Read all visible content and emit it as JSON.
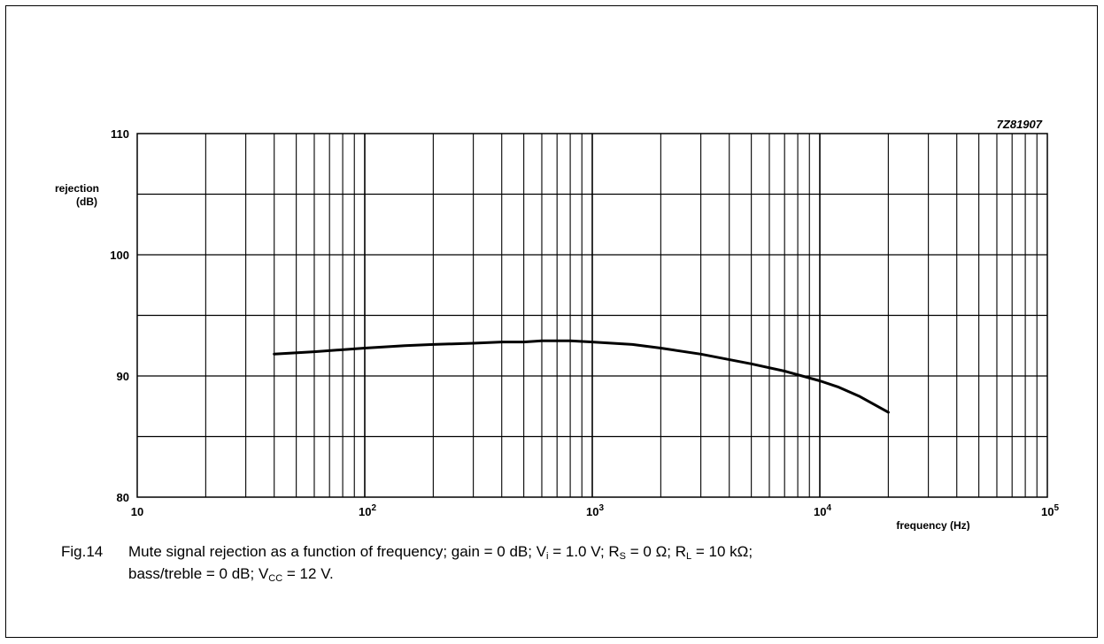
{
  "chart_data": {
    "type": "line",
    "code": "7Z81907",
    "ylabel_line1": "rejection",
    "ylabel_line2": "(dB)",
    "xlabel": "frequency (Hz)",
    "x_scale": "log",
    "xlim": [
      10,
      100000
    ],
    "ylim": [
      80,
      110
    ],
    "grid": true,
    "y_ticks": [
      {
        "value": 80,
        "label": "80"
      },
      {
        "value": 90,
        "label": "90"
      },
      {
        "value": 100,
        "label": "100"
      },
      {
        "value": 110,
        "label": "110"
      }
    ],
    "x_ticks": [
      {
        "value": 10,
        "base": "10",
        "exp": ""
      },
      {
        "value": 100,
        "base": "10",
        "exp": "2"
      },
      {
        "value": 1000,
        "base": "10",
        "exp": "3"
      },
      {
        "value": 10000,
        "base": "10",
        "exp": "4"
      },
      {
        "value": 100000,
        "base": "10",
        "exp": "5"
      }
    ],
    "series": [
      {
        "x": [
          40,
          60,
          100,
          150,
          200,
          300,
          400,
          500,
          600,
          700,
          800,
          1000,
          1500,
          2000,
          3000,
          5000,
          7000,
          10000,
          12000,
          15000,
          20000
        ],
        "y": [
          91.8,
          92.0,
          92.3,
          92.5,
          92.6,
          92.7,
          92.8,
          92.8,
          92.9,
          92.9,
          92.9,
          92.8,
          92.6,
          92.3,
          91.8,
          91.0,
          90.4,
          89.6,
          89.1,
          88.3,
          87.0
        ]
      }
    ]
  },
  "caption": {
    "fig": "Fig.14",
    "p1": "Mute signal rejection as a function of frequency; gain = 0 dB; V",
    "s1": "i",
    "p2": " = 1.0 V; R",
    "s2": "S",
    "p3": " = 0 Ω; R",
    "s3": "L",
    "p4": " = 10 kΩ;",
    "p5": "bass/treble = 0 dB; V",
    "s5": "CC",
    "p6": " = 12 V."
  }
}
